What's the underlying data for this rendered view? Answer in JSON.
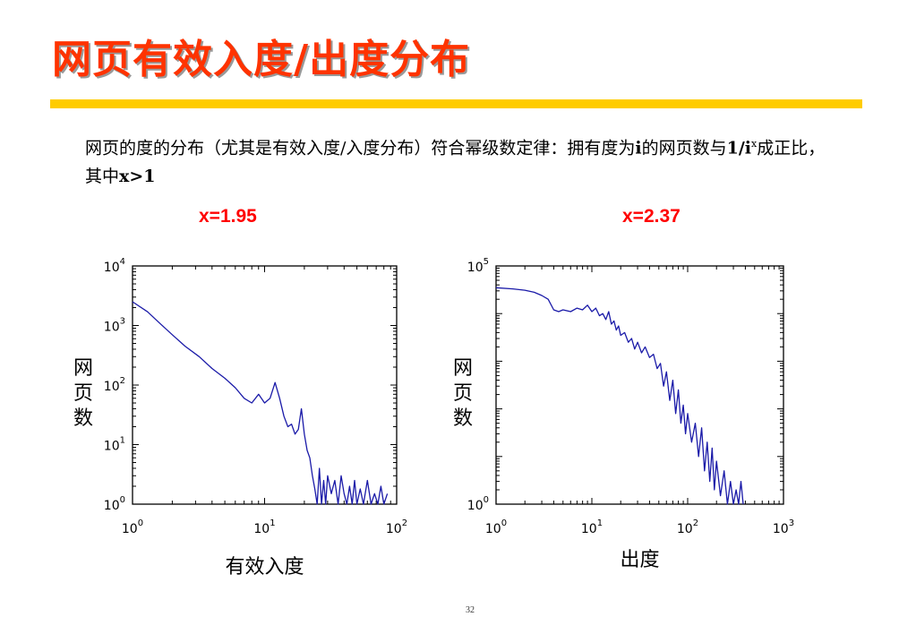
{
  "slide": {
    "title": "网页有效入度/出度分布",
    "desc_part1": "网页的度的分布（尤其是有效入度/入度分布）符合幂级数定律：拥有度为",
    "desc_i": "i",
    "desc_part2": "的网页数与",
    "desc_frac": "1/i",
    "desc_sup": "x",
    "desc_part3": "成正比，其中",
    "desc_cond": "x>1",
    "page_number": "32"
  },
  "colors": {
    "title": "#ff3300",
    "bar": "#ffcc00",
    "accent": "#ff0000",
    "series": "#1a1aa8"
  },
  "chart_data": [
    {
      "type": "line",
      "annotation": "x=1.95",
      "xlabel": "有效入度",
      "ylabel": "网页数",
      "xscale": "log",
      "yscale": "log",
      "xlim": [
        1,
        100
      ],
      "ylim": [
        1,
        10000
      ],
      "x_ticks": [
        "10^0",
        "10^1",
        "10^2"
      ],
      "y_ticks": [
        "10^0",
        "10^1",
        "10^2",
        "10^3",
        "10^4"
      ],
      "series": [
        {
          "x": [
            1,
            1.3,
            1.6,
            2,
            2.5,
            3.2,
            4,
            5,
            6,
            7,
            8,
            9,
            10,
            11,
            12,
            13,
            14,
            15,
            16,
            17,
            18,
            19,
            20,
            21,
            22,
            23,
            24,
            25,
            26,
            27,
            28,
            29,
            30,
            32,
            34,
            36,
            38,
            40,
            42,
            44,
            46,
            48,
            50,
            53,
            56,
            60,
            64,
            68,
            72,
            76,
            80,
            85
          ],
          "y": [
            2500,
            1700,
            1100,
            700,
            450,
            300,
            190,
            130,
            90,
            60,
            50,
            70,
            50,
            60,
            110,
            60,
            30,
            20,
            22,
            15,
            18,
            40,
            15,
            8,
            6,
            3,
            1.8,
            1,
            4,
            1,
            2.5,
            1,
            3,
            1.5,
            2.5,
            1,
            3,
            1.5,
            1,
            2,
            1,
            2.5,
            1,
            1.8,
            1,
            2.5,
            1,
            1.5,
            1,
            2,
            1,
            1.5
          ]
        }
      ]
    },
    {
      "type": "line",
      "annotation": "x=2.37",
      "xlabel": "出度",
      "ylabel": "网页数",
      "xscale": "log",
      "yscale": "log",
      "xlim": [
        1,
        1000
      ],
      "ylim": [
        1,
        100000
      ],
      "x_ticks": [
        "10^0",
        "10^1",
        "10^2",
        "10^3"
      ],
      "y_ticks": [
        "10^0",
        "10^5"
      ],
      "series": [
        {
          "x": [
            1,
            1.5,
            2,
            2.5,
            3,
            3.5,
            4,
            4.5,
            5,
            6,
            7,
            8,
            9,
            10,
            11,
            12,
            13,
            14,
            15,
            16,
            17,
            18,
            19,
            20,
            22,
            24,
            26,
            28,
            30,
            33,
            36,
            40,
            44,
            48,
            52,
            56,
            60,
            65,
            70,
            75,
            80,
            85,
            90,
            95,
            100,
            110,
            120,
            130,
            140,
            150,
            160,
            170,
            180,
            190,
            200,
            220,
            240,
            260,
            280,
            300,
            320,
            340,
            360,
            380
          ],
          "y": [
            35000,
            33000,
            31000,
            28000,
            24000,
            20000,
            12000,
            11000,
            12000,
            11000,
            13000,
            12000,
            15000,
            11000,
            13000,
            9000,
            10000,
            7500,
            11000,
            6000,
            7000,
            4500,
            5500,
            3500,
            4000,
            2500,
            3000,
            1800,
            2500,
            1500,
            2000,
            1200,
            1400,
            700,
            900,
            300,
            600,
            150,
            400,
            80,
            250,
            50,
            120,
            30,
            80,
            20,
            50,
            10,
            40,
            5,
            20,
            3,
            15,
            2,
            8,
            1.5,
            5,
            1,
            3,
            1,
            2,
            1,
            3,
            1
          ]
        }
      ]
    }
  ]
}
